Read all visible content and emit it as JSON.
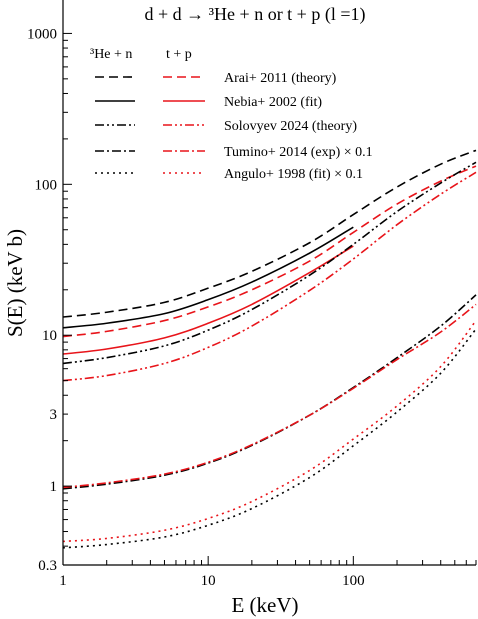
{
  "chart_data": {
    "type": "line",
    "title": "d + d → ³He + n  or  t + p  (l =1)",
    "xlabel": "E (keV)",
    "ylabel": "S(E) (keV b)",
    "xscale": "log",
    "yscale": "log",
    "xlim": [
      1,
      700
    ],
    "ylim": [
      0.3,
      2000
    ],
    "xticks": [
      1,
      10,
      100
    ],
    "xtick_labels": [
      "1",
      "10",
      "100"
    ],
    "yticks": [
      0.3,
      1,
      3,
      10,
      100,
      1000
    ],
    "ytick_labels": [
      "0.3",
      "1",
      "3",
      "10",
      "100",
      "1000"
    ],
    "grid": false,
    "legend_position": "top-left",
    "legend_headers": [
      "³He + n",
      "t + p"
    ],
    "legend_entries": [
      {
        "label": "Arai+ 2011 (theory)",
        "style": "dashed"
      },
      {
        "label": "Nebia+ 2002 (fit)",
        "style": "solid"
      },
      {
        "label": "Solovyev 2024 (theory)",
        "style": "dash-dot-dot"
      },
      {
        "label": "Tumino+ 2014 (exp) × 0.1",
        "style": "dash-dot"
      },
      {
        "label": "Angulo+ 1998 (fit) × 0.1",
        "style": "dotted"
      }
    ],
    "colors": {
      "3He+n": "#000000",
      "t+p": "#e8141a"
    },
    "series": [
      {
        "label": "Arai+ 2011 (theory)",
        "channel": "3He+n",
        "style": "dashed",
        "x": [
          1,
          2,
          5,
          10,
          20,
          50,
          100,
          200,
          400,
          700
        ],
        "y": [
          13.2,
          14.2,
          16.5,
          20.5,
          26.5,
          41,
          63,
          96,
          136,
          168
        ]
      },
      {
        "label": "Arai+ 2011 (theory)",
        "channel": "t+p",
        "style": "dashed",
        "x": [
          1,
          2,
          5,
          10,
          20,
          50,
          100,
          200,
          400,
          700
        ],
        "y": [
          9.8,
          10.6,
          12.5,
          15.4,
          20,
          31,
          48,
          74,
          105,
          132
        ]
      },
      {
        "label": "Nebia+ 2002 (fit)",
        "channel": "3He+n",
        "style": "solid",
        "x": [
          1,
          2,
          5,
          10,
          20,
          50,
          100
        ],
        "y": [
          11.2,
          12,
          13.9,
          17.2,
          22.5,
          35,
          52
        ]
      },
      {
        "label": "Nebia+ 2002 (fit)",
        "channel": "t+p",
        "style": "solid",
        "x": [
          1,
          2,
          5,
          10,
          20,
          50,
          100
        ],
        "y": [
          7.5,
          8.1,
          9.6,
          12,
          16,
          26,
          39
        ]
      },
      {
        "label": "Solovyev 2024 (theory)",
        "channel": "3He+n",
        "style": "dash-dot-dot",
        "x": [
          1,
          2,
          5,
          10,
          20,
          50,
          100,
          200,
          400,
          700
        ],
        "y": [
          6.5,
          7.1,
          8.5,
          10.8,
          14.8,
          25,
          40,
          66,
          102,
          140
        ]
      },
      {
        "label": "Solovyev 2024 (theory)",
        "channel": "t+p",
        "style": "dash-dot-dot",
        "x": [
          1,
          2,
          5,
          10,
          20,
          50,
          100,
          200,
          400,
          700
        ],
        "y": [
          5,
          5.4,
          6.5,
          8.3,
          11.5,
          19.8,
          32,
          54,
          86,
          120
        ]
      },
      {
        "label": "Tumino+ 2014 (exp) × 0.1",
        "channel": "3He+n",
        "style": "dash-dot",
        "x": [
          1,
          2,
          5,
          10,
          20,
          50,
          100,
          200,
          400,
          700
        ],
        "y": [
          0.96,
          1.03,
          1.18,
          1.42,
          1.86,
          2.95,
          4.5,
          7.1,
          11.5,
          18.5
        ]
      },
      {
        "label": "Tumino+ 2014 (exp) × 0.1",
        "channel": "t+p",
        "style": "dash-dot",
        "x": [
          1,
          2,
          5,
          10,
          20,
          50,
          100,
          200,
          400,
          700
        ],
        "y": [
          0.98,
          1.05,
          1.2,
          1.44,
          1.88,
          2.95,
          4.45,
          6.9,
          10.5,
          16
        ]
      },
      {
        "label": "Angulo+ 1998 (fit) × 0.1",
        "channel": "3He+n",
        "style": "dotted",
        "x": [
          1,
          2,
          5,
          10,
          20,
          50,
          100,
          200,
          400,
          700
        ],
        "y": [
          0.39,
          0.41,
          0.46,
          0.55,
          0.71,
          1.14,
          1.85,
          3.1,
          5.6,
          11
        ]
      },
      {
        "label": "Angulo+ 1998 (fit) × 0.1",
        "channel": "t+p",
        "style": "dotted",
        "x": [
          1,
          2,
          5,
          10,
          20,
          50,
          100,
          200,
          400,
          700
        ],
        "y": [
          0.43,
          0.45,
          0.51,
          0.61,
          0.79,
          1.27,
          2.05,
          3.4,
          6.2,
          12.5
        ]
      }
    ]
  }
}
